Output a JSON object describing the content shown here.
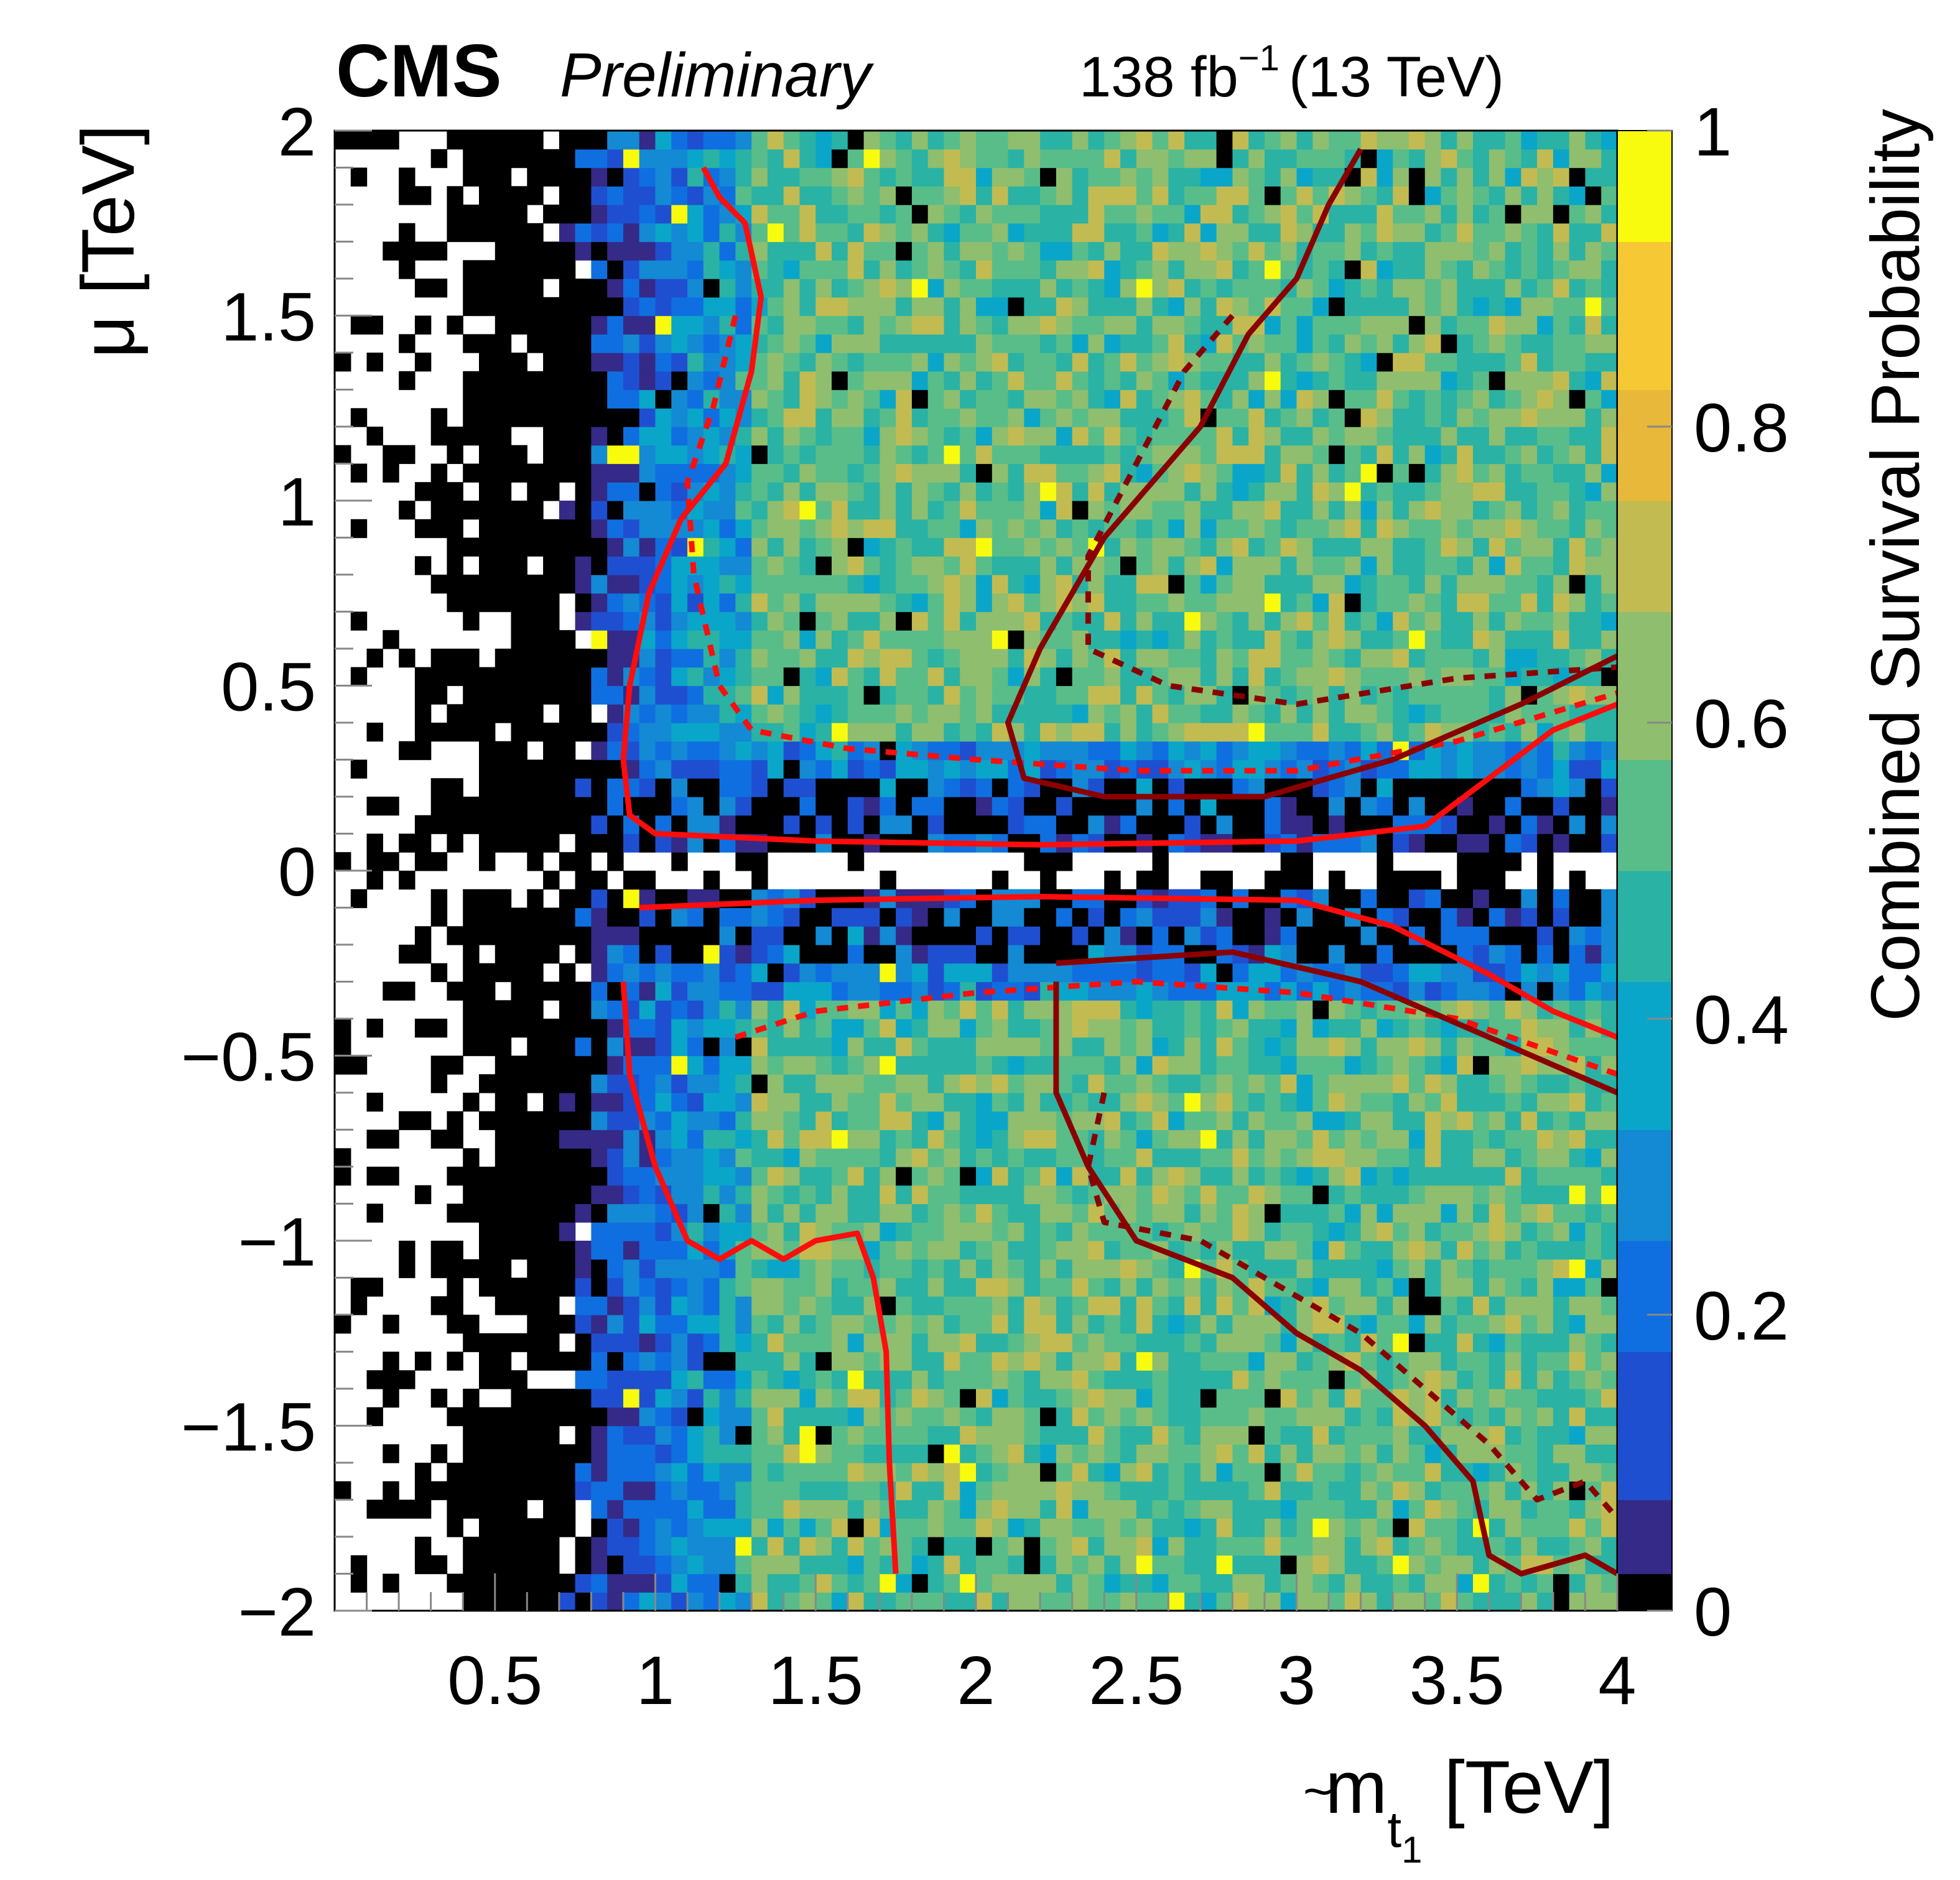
{
  "header": {
    "experiment": "CMS",
    "status": "Preliminary",
    "lumi_value": "138 fb",
    "lumi_exponent": "−1",
    "energy": "(13 TeV)"
  },
  "chart_data": {
    "type": "heatmap",
    "xlabel_main": "m",
    "xlabel_tilde": "~",
    "xlabel_sub": "t",
    "xlabel_subsub": "1",
    "xlabel_unit": "[TeV]",
    "ylabel": "μ [TeV]",
    "zlabel": "Combined Survival Probability",
    "xlim": [
      0.0,
      4.0
    ],
    "ylim": [
      -2.0,
      2.0
    ],
    "zlim": [
      0.0,
      1.0
    ],
    "x_ticks": [
      "0.5",
      "1",
      "1.5",
      "2",
      "2.5",
      "3",
      "3.5",
      "4"
    ],
    "x_tick_values": [
      0.5,
      1,
      1.5,
      2,
      2.5,
      3,
      3.5,
      4
    ],
    "y_ticks": [
      "−2",
      "−1.5",
      "−1",
      "−0.5",
      "0",
      "0.5",
      "1",
      "1.5",
      "2"
    ],
    "y_tick_values": [
      -2,
      -1.5,
      -1,
      -0.5,
      0,
      0.5,
      1,
      1.5,
      2
    ],
    "z_ticks": [
      "0",
      "0.2",
      "0.4",
      "0.6",
      "0.8",
      "1"
    ],
    "z_tick_values": [
      0,
      0.2,
      0.4,
      0.6,
      0.8,
      1
    ],
    "colors": {
      "zero": "#000000",
      "palette": [
        "#352a87",
        "#1f4fd1",
        "#0f6fe0",
        "#1489d4",
        "#0aa6c9",
        "#2ab2a4",
        "#59bd8a",
        "#8fbe6e",
        "#c2bb52",
        "#e8b83a",
        "#f6c833",
        "#f9fb0e"
      ],
      "contour_solid": "#ff0d0d",
      "contour_dark": "#8b0000"
    },
    "heatmap_summary": {
      "x_bins": 80,
      "y_bins": 80,
      "black_region_below_x": 0.9,
      "black_band_mu_abs_below": 0.25,
      "empty_band_mu_abs_below": 0.05,
      "typical_value_high_mass": 0.55
    },
    "contours": [
      {
        "style": "solid",
        "color": "contour_solid",
        "points": [
          [
            1.15,
            1.9
          ],
          [
            1.2,
            1.82
          ],
          [
            1.28,
            1.75
          ],
          [
            1.33,
            1.55
          ],
          [
            1.3,
            1.35
          ],
          [
            1.22,
            1.1
          ],
          [
            1.08,
            0.95
          ],
          [
            0.98,
            0.75
          ],
          [
            0.92,
            0.5
          ],
          [
            0.9,
            0.3
          ],
          [
            0.92,
            0.15
          ],
          [
            1.0,
            0.1
          ],
          [
            1.5,
            0.08
          ],
          [
            2.2,
            0.07
          ],
          [
            3.0,
            0.08
          ],
          [
            3.4,
            0.12
          ],
          [
            3.6,
            0.25
          ],
          [
            3.8,
            0.38
          ],
          [
            4.0,
            0.45
          ]
        ]
      },
      {
        "style": "solid",
        "color": "contour_solid",
        "points": [
          [
            0.9,
            -0.3
          ],
          [
            0.92,
            -0.55
          ],
          [
            1.0,
            -0.8
          ],
          [
            1.1,
            -1.0
          ],
          [
            1.2,
            -1.05
          ],
          [
            1.3,
            -1.0
          ],
          [
            1.4,
            -1.05
          ],
          [
            1.5,
            -1.0
          ],
          [
            1.63,
            -0.98
          ],
          [
            1.68,
            -1.1
          ],
          [
            1.72,
            -1.3
          ],
          [
            1.73,
            -1.6
          ],
          [
            1.75,
            -1.9
          ]
        ]
      },
      {
        "style": "solid",
        "color": "contour_solid",
        "points": [
          [
            0.95,
            -0.1
          ],
          [
            1.5,
            -0.08
          ],
          [
            2.2,
            -0.07
          ],
          [
            3.0,
            -0.08
          ],
          [
            3.3,
            -0.15
          ],
          [
            3.6,
            -0.28
          ],
          [
            3.8,
            -0.38
          ],
          [
            4.0,
            -0.45
          ]
        ]
      },
      {
        "style": "dashed",
        "color": "contour_solid",
        "points": [
          [
            1.25,
            1.5
          ],
          [
            1.18,
            1.25
          ],
          [
            1.1,
            1.05
          ],
          [
            1.12,
            0.8
          ],
          [
            1.2,
            0.5
          ],
          [
            1.3,
            0.38
          ],
          [
            1.6,
            0.33
          ],
          [
            2.0,
            0.3
          ],
          [
            2.5,
            0.27
          ],
          [
            3.0,
            0.27
          ],
          [
            3.5,
            0.35
          ],
          [
            4.0,
            0.48
          ]
        ]
      },
      {
        "style": "dashed",
        "color": "contour_solid",
        "points": [
          [
            1.25,
            -0.45
          ],
          [
            1.5,
            -0.38
          ],
          [
            2.0,
            -0.33
          ],
          [
            2.5,
            -0.3
          ],
          [
            3.0,
            -0.33
          ],
          [
            3.5,
            -0.4
          ],
          [
            4.0,
            -0.55
          ]
        ]
      },
      {
        "style": "solid",
        "color": "contour_dark",
        "points": [
          [
            3.2,
            1.95
          ],
          [
            3.1,
            1.8
          ],
          [
            3.0,
            1.6
          ],
          [
            2.85,
            1.45
          ],
          [
            2.7,
            1.2
          ],
          [
            2.55,
            1.05
          ],
          [
            2.4,
            0.9
          ],
          [
            2.2,
            0.6
          ],
          [
            2.1,
            0.4
          ],
          [
            2.15,
            0.25
          ],
          [
            2.4,
            0.2
          ],
          [
            2.9,
            0.2
          ],
          [
            3.3,
            0.3
          ],
          [
            3.7,
            0.45
          ],
          [
            4.0,
            0.58
          ]
        ]
      },
      {
        "style": "dashed",
        "color": "contour_dark",
        "points": [
          [
            2.8,
            1.5
          ],
          [
            2.65,
            1.35
          ],
          [
            2.5,
            1.1
          ],
          [
            2.35,
            0.85
          ],
          [
            2.35,
            0.6
          ],
          [
            2.6,
            0.5
          ],
          [
            3.0,
            0.45
          ],
          [
            3.5,
            0.52
          ],
          [
            4.0,
            0.55
          ]
        ]
      },
      {
        "style": "solid",
        "color": "contour_dark",
        "points": [
          [
            2.25,
            -0.25
          ],
          [
            2.8,
            -0.22
          ],
          [
            3.2,
            -0.3
          ],
          [
            3.6,
            -0.45
          ],
          [
            4.0,
            -0.6
          ]
        ]
      },
      {
        "style": "solid",
        "color": "contour_dark",
        "points": [
          [
            2.25,
            -0.3
          ],
          [
            2.25,
            -0.6
          ],
          [
            2.35,
            -0.8
          ],
          [
            2.5,
            -1.0
          ],
          [
            2.8,
            -1.1
          ],
          [
            3.0,
            -1.25
          ],
          [
            3.2,
            -1.35
          ],
          [
            3.4,
            -1.5
          ],
          [
            3.55,
            -1.65
          ],
          [
            3.6,
            -1.85
          ],
          [
            3.7,
            -1.9
          ],
          [
            3.9,
            -1.85
          ],
          [
            4.0,
            -1.9
          ]
        ]
      },
      {
        "style": "dashed",
        "color": "contour_dark",
        "points": [
          [
            2.4,
            -0.6
          ],
          [
            2.35,
            -0.8
          ],
          [
            2.4,
            -0.95
          ],
          [
            2.7,
            -1.0
          ],
          [
            3.0,
            -1.15
          ],
          [
            3.2,
            -1.25
          ],
          [
            3.4,
            -1.4
          ],
          [
            3.6,
            -1.55
          ],
          [
            3.75,
            -1.7
          ],
          [
            3.9,
            -1.65
          ],
          [
            4.0,
            -1.75
          ]
        ]
      }
    ]
  }
}
